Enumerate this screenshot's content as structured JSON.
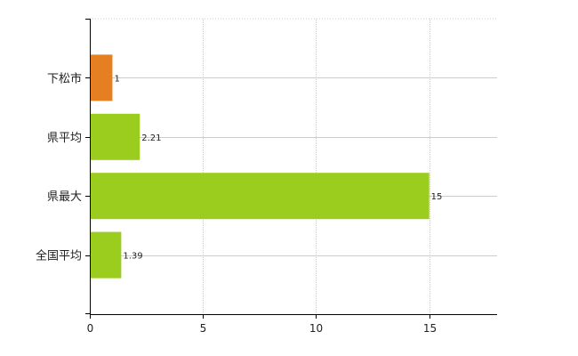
{
  "chart_data": {
    "type": "bar",
    "orientation": "horizontal",
    "categories": [
      "下松市",
      "県平均",
      "県最大",
      "全国平均"
    ],
    "values": [
      1,
      2.21,
      15,
      1.39
    ],
    "value_labels": [
      "1",
      "2.21",
      "15",
      "1.39"
    ],
    "bar_colors": [
      "#e67e22",
      "#9acd1e",
      "#9acd1e",
      "#9acd1e"
    ],
    "xlim": [
      0,
      18
    ],
    "xticks": [
      0,
      5,
      10,
      15
    ],
    "xtick_labels": [
      "0",
      "5",
      "10",
      "15"
    ],
    "grid": true,
    "legend": "none",
    "title": "",
    "xlabel": "",
    "ylabel": ""
  }
}
